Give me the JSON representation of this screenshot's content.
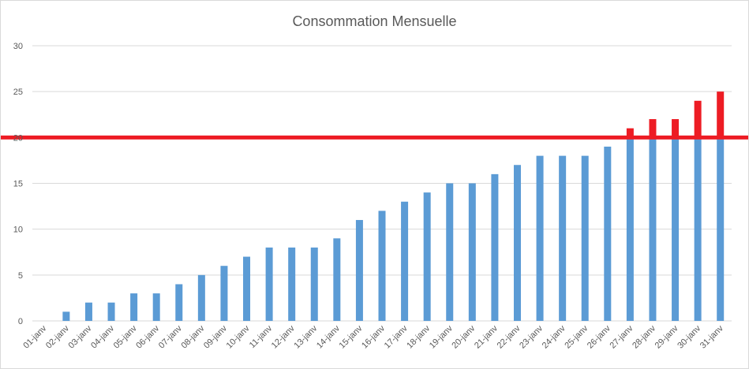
{
  "chart_data": {
    "type": "bar",
    "title": "Consommation Mensuelle",
    "xlabel": "",
    "ylabel": "",
    "ylim": [
      0,
      30
    ],
    "yticks": [
      0,
      5,
      10,
      15,
      20,
      25,
      30
    ],
    "grid": true,
    "categories": [
      "01-janv",
      "02-janv",
      "03-janv",
      "04-janv",
      "05-janv",
      "06-janv",
      "07-janv",
      "08-janv",
      "09-janv",
      "10-janv",
      "11-janv",
      "12-janv",
      "13-janv",
      "14-janv",
      "15-janv",
      "16-janv",
      "17-janv",
      "18-janv",
      "19-janv",
      "20-janv",
      "21-janv",
      "22-janv",
      "23-janv",
      "24-janv",
      "25-janv",
      "26-janv",
      "27-janv",
      "28-janv",
      "29-janv",
      "30-janv",
      "31-janv"
    ],
    "values": [
      0,
      1,
      2,
      2,
      3,
      3,
      4,
      5,
      6,
      7,
      8,
      8,
      8,
      9,
      11,
      12,
      13,
      14,
      15,
      15,
      16,
      17,
      18,
      18,
      18,
      19,
      21,
      22,
      22,
      24,
      25
    ],
    "threshold": 20,
    "colors": {
      "bar": "#5b9bd5",
      "above_threshold": "#ed1c24",
      "threshold_line": "#ed1c24",
      "grid": "#d9d9d9",
      "text": "#595959"
    }
  }
}
